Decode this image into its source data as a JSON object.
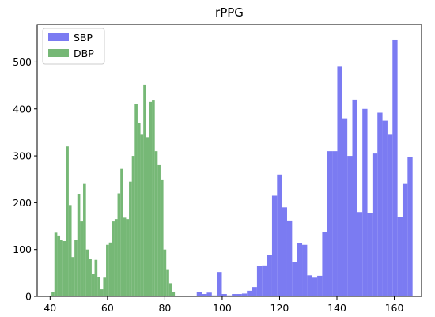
{
  "chart_data": {
    "type": "histogram",
    "title": "rPPG",
    "xlabel": "",
    "ylabel": "",
    "xlim": [
      35.5,
      169.5
    ],
    "ylim": [
      0,
      580
    ],
    "xticks": [
      40,
      60,
      80,
      100,
      120,
      140,
      160
    ],
    "yticks": [
      0,
      100,
      200,
      300,
      400,
      500
    ],
    "grid": false,
    "legend_position": "top-left",
    "bin_width": 1.75,
    "series": [
      {
        "name": "SBP",
        "color": "#7b7bf2",
        "bins": [
          {
            "x": 92.0,
            "y": 10
          },
          {
            "x": 93.75,
            "y": 5
          },
          {
            "x": 95.5,
            "y": 8
          },
          {
            "x": 97.25,
            "y": 2
          },
          {
            "x": 99.0,
            "y": 52
          },
          {
            "x": 100.75,
            "y": 5
          },
          {
            "x": 102.5,
            "y": 2
          },
          {
            "x": 104.25,
            "y": 5
          },
          {
            "x": 106.0,
            "y": 5
          },
          {
            "x": 107.75,
            "y": 6
          },
          {
            "x": 109.5,
            "y": 12
          },
          {
            "x": 111.25,
            "y": 20
          },
          {
            "x": 113.0,
            "y": 65
          },
          {
            "x": 114.75,
            "y": 66
          },
          {
            "x": 116.5,
            "y": 88
          },
          {
            "x": 118.25,
            "y": 215
          },
          {
            "x": 120.0,
            "y": 260
          },
          {
            "x": 121.75,
            "y": 190
          },
          {
            "x": 123.5,
            "y": 162
          },
          {
            "x": 125.25,
            "y": 73
          },
          {
            "x": 127.0,
            "y": 114
          },
          {
            "x": 128.75,
            "y": 110
          },
          {
            "x": 130.5,
            "y": 45
          },
          {
            "x": 132.25,
            "y": 40
          },
          {
            "x": 134.0,
            "y": 44
          },
          {
            "x": 135.75,
            "y": 138
          },
          {
            "x": 137.5,
            "y": 310
          },
          {
            "x": 139.25,
            "y": 310
          },
          {
            "x": 141.0,
            "y": 490
          },
          {
            "x": 142.75,
            "y": 380
          },
          {
            "x": 144.5,
            "y": 300
          },
          {
            "x": 146.25,
            "y": 420
          },
          {
            "x": 148.0,
            "y": 180
          },
          {
            "x": 149.75,
            "y": 400
          },
          {
            "x": 151.5,
            "y": 178
          },
          {
            "x": 153.25,
            "y": 305
          },
          {
            "x": 155.0,
            "y": 392
          },
          {
            "x": 156.75,
            "y": 375
          },
          {
            "x": 158.5,
            "y": 345
          },
          {
            "x": 160.25,
            "y": 548
          },
          {
            "x": 162.0,
            "y": 170
          },
          {
            "x": 163.75,
            "y": 240
          },
          {
            "x": 165.5,
            "y": 298
          }
        ]
      },
      {
        "name": "DBP",
        "color": "#76b876",
        "bins": [
          {
            "x": 41.0,
            "y": 10
          },
          {
            "x": 42.0,
            "y": 136
          },
          {
            "x": 43.0,
            "y": 130
          },
          {
            "x": 44.0,
            "y": 120
          },
          {
            "x": 45.0,
            "y": 118
          },
          {
            "x": 46.0,
            "y": 320
          },
          {
            "x": 47.0,
            "y": 195
          },
          {
            "x": 48.0,
            "y": 84
          },
          {
            "x": 49.0,
            "y": 120
          },
          {
            "x": 50.0,
            "y": 218
          },
          {
            "x": 51.0,
            "y": 160
          },
          {
            "x": 52.0,
            "y": 240
          },
          {
            "x": 53.0,
            "y": 100
          },
          {
            "x": 54.0,
            "y": 80
          },
          {
            "x": 55.0,
            "y": 48
          },
          {
            "x": 56.0,
            "y": 78
          },
          {
            "x": 57.0,
            "y": 42
          },
          {
            "x": 58.0,
            "y": 15
          },
          {
            "x": 59.0,
            "y": 40
          },
          {
            "x": 60.0,
            "y": 110
          },
          {
            "x": 61.0,
            "y": 115
          },
          {
            "x": 62.0,
            "y": 160
          },
          {
            "x": 63.0,
            "y": 165
          },
          {
            "x": 64.0,
            "y": 220
          },
          {
            "x": 65.0,
            "y": 272
          },
          {
            "x": 66.0,
            "y": 168
          },
          {
            "x": 67.0,
            "y": 165
          },
          {
            "x": 68.0,
            "y": 245
          },
          {
            "x": 69.0,
            "y": 300
          },
          {
            "x": 70.0,
            "y": 410
          },
          {
            "x": 71.0,
            "y": 370
          },
          {
            "x": 72.0,
            "y": 345
          },
          {
            "x": 73.0,
            "y": 452
          },
          {
            "x": 74.0,
            "y": 340
          },
          {
            "x": 75.0,
            "y": 415
          },
          {
            "x": 76.0,
            "y": 418
          },
          {
            "x": 77.0,
            "y": 310
          },
          {
            "x": 78.0,
            "y": 280
          },
          {
            "x": 79.0,
            "y": 248
          },
          {
            "x": 80.0,
            "y": 100
          },
          {
            "x": 81.0,
            "y": 58
          },
          {
            "x": 82.0,
            "y": 28
          },
          {
            "x": 83.0,
            "y": 10
          }
        ]
      }
    ]
  }
}
